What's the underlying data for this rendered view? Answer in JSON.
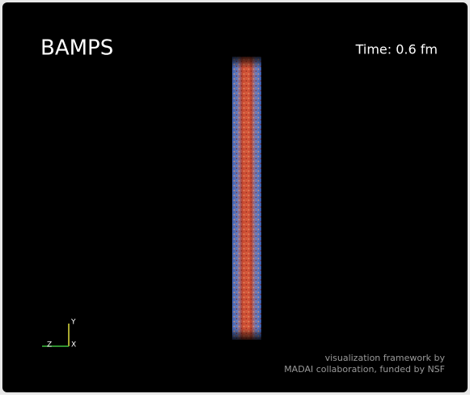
{
  "title": "BAMPS",
  "time_label": "Time: 0.6 fm",
  "axes": {
    "y": "Y",
    "z": "Z",
    "x": "X"
  },
  "credits": [
    "visualization framework by",
    "MADAI collaboration, funded by NSF"
  ]
}
